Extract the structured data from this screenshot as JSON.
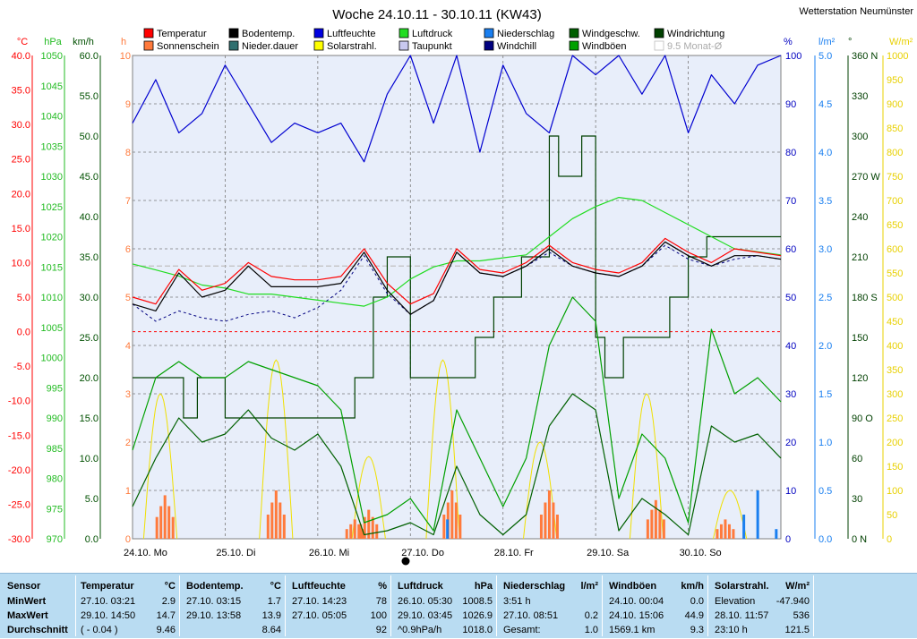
{
  "title": "Woche 24.10.11 - 30.10.11 (KW43)",
  "station": "Wetterstation Neumünster",
  "legend": [
    {
      "label": "Temperatur",
      "color": "#ff0000"
    },
    {
      "label": "Sonnenschein",
      "color": "#ff7a3c"
    },
    {
      "label": "Bodentemp.",
      "color": "#000000"
    },
    {
      "label": "Nieder.dauer",
      "color": "#2f6f6f"
    },
    {
      "label": "Luftfeuchte",
      "color": "#0000e0"
    },
    {
      "label": "Solarstrahl.",
      "color": "#ffff00"
    },
    {
      "label": "Luftdruck",
      "color": "#22dd22"
    },
    {
      "label": "Taupunkt",
      "color": "#c8c8f0"
    },
    {
      "label": "Niederschlag",
      "color": "#1a7ff0"
    },
    {
      "label": "Windchill",
      "color": "#000080"
    },
    {
      "label": "Windgeschw.",
      "color": "#006000"
    },
    {
      "label": "Windböen",
      "color": "#00a000"
    },
    {
      "label": "Windrichtung",
      "color": "#004000"
    },
    {
      "label": "9.5 Monat-Ø",
      "color": "#c0c0c0"
    }
  ],
  "axes": {
    "temp": {
      "unit": "°C",
      "color": "#ff0000",
      "ticks": [
        "40.0",
        "35.0",
        "30.0",
        "25.0",
        "20.0",
        "15.0",
        "10.0",
        "5.0",
        "0.0",
        "-5.0",
        "-10.0",
        "-15.0",
        "-20.0",
        "-25.0",
        "-30.0"
      ]
    },
    "press": {
      "unit": "hPa",
      "color": "#22bb22",
      "ticks": [
        "1050",
        "1045",
        "1040",
        "1035",
        "1030",
        "1025",
        "1020",
        "1015",
        "1010",
        "1005",
        "1000",
        "995",
        "990",
        "985",
        "980",
        "975",
        "970"
      ]
    },
    "wind": {
      "unit": "km/h",
      "color": "#005000",
      "ticks": [
        "60.0",
        "55.0",
        "50.0",
        "45.0",
        "40.0",
        "35.0",
        "30.0",
        "25.0",
        "20.0",
        "15.0",
        "10.0",
        "5.0",
        "0.0"
      ]
    },
    "hours": {
      "unit": "h",
      "color": "#ff7a3c",
      "ticks": [
        "10",
        "9",
        "8",
        "7",
        "6",
        "5",
        "4",
        "3",
        "2",
        "1",
        "0"
      ]
    },
    "hum": {
      "unit": "%",
      "color": "#0000c0",
      "ticks": [
        "100",
        "90",
        "80",
        "70",
        "60",
        "50",
        "40",
        "30",
        "20",
        "10",
        "0"
      ]
    },
    "rain": {
      "unit": "l/m²",
      "color": "#1a7ff0",
      "ticks": [
        "5.0",
        "4.5",
        "4.0",
        "3.5",
        "3.0",
        "2.5",
        "2.0",
        "1.5",
        "1.0",
        "0.5",
        "0.0"
      ]
    },
    "dir": {
      "unit": "°",
      "color": "#004000",
      "ticks": [
        "360 N",
        "330",
        "300",
        "270 W",
        "240",
        "210",
        "180 S",
        "150",
        "120",
        "90 O",
        "60",
        "30",
        "0 N"
      ]
    },
    "solar": {
      "unit": "W/m²",
      "color": "#e8d000",
      "ticks": [
        "1000",
        "950",
        "900",
        "850",
        "800",
        "750",
        "700",
        "650",
        "600",
        "550",
        "500",
        "450",
        "400",
        "350",
        "300",
        "250",
        "200",
        "150",
        "100",
        "50",
        "0"
      ]
    }
  },
  "x_labels": [
    "24.10. Mo",
    "25.10. Di",
    "26.10. Mi",
    "27.10. Do",
    "28.10. Fr",
    "29.10. Sa",
    "30.10. So"
  ],
  "chart_data": {
    "type": "line",
    "title": "Woche 24.10.11 - 30.10.11 (KW43)",
    "x": [
      0,
      0.25,
      0.5,
      0.75,
      1,
      1.25,
      1.5,
      1.75,
      2,
      2.25,
      2.5,
      2.75,
      3,
      3.25,
      3.5,
      3.75,
      4,
      4.25,
      4.5,
      4.75,
      5,
      5.25,
      5.5,
      5.75,
      6,
      6.25,
      6.5,
      6.75,
      7
    ],
    "x_unit": "days since 24.10. 00:00",
    "series": [
      {
        "name": "Temperatur",
        "unit": "°C",
        "values": [
          5.0,
          4.0,
          9.0,
          6.0,
          7.0,
          10.0,
          8.0,
          7.5,
          7.5,
          8.0,
          12.0,
          7.0,
          4.0,
          5.5,
          12.0,
          9.0,
          8.5,
          10.0,
          12.5,
          10.0,
          9.0,
          8.5,
          10.0,
          13.5,
          11.5,
          10.0,
          12.0,
          11.5,
          11.0
        ]
      },
      {
        "name": "Bodentemp.",
        "unit": "°C",
        "values": [
          4.0,
          3.0,
          8.5,
          5.0,
          6.0,
          9.5,
          6.5,
          6.5,
          6.5,
          7.0,
          11.5,
          6.0,
          2.5,
          4.5,
          11.5,
          8.5,
          8.0,
          9.5,
          12.0,
          9.5,
          8.5,
          8.0,
          9.5,
          13.0,
          11.0,
          9.5,
          11.0,
          11.0,
          10.5
        ]
      },
      {
        "name": "Windchill",
        "unit": "°C",
        "values": [
          4.0,
          1.5,
          3.0,
          2.0,
          1.5,
          2.5,
          3.0,
          2.0,
          3.5,
          6.0,
          11.0,
          5.5,
          2.5,
          4.5,
          11.5,
          8.5,
          8.0,
          9.5,
          11.5,
          9.5,
          8.5,
          8.0,
          9.5,
          12.5,
          10.5,
          9.5,
          10.5,
          11.0,
          10.5
        ]
      },
      {
        "name": "Luftfeuchte",
        "unit": "%",
        "values": [
          86,
          95,
          84,
          88,
          98,
          90,
          82,
          86,
          84,
          86,
          78,
          92,
          100,
          86,
          100,
          80,
          98,
          88,
          84,
          100,
          96,
          100,
          92,
          100,
          84,
          96,
          90,
          98,
          100
        ]
      },
      {
        "name": "Luftdruck",
        "unit": "hPa",
        "values": [
          1015.5,
          1014.5,
          1013.5,
          1012.0,
          1011.5,
          1010.5,
          1010.5,
          1010.0,
          1009.5,
          1009.0,
          1008.5,
          1010.0,
          1013.0,
          1015.0,
          1016.0,
          1016.0,
          1016.5,
          1017.0,
          1020.0,
          1023.0,
          1025.0,
          1026.5,
          1026.0,
          1024.0,
          1022.0,
          1020.0,
          1018.0,
          1017.5,
          1017.0
        ]
      },
      {
        "name": "Windgeschw.",
        "unit": "km/h",
        "values": [
          4.0,
          10.0,
          15.0,
          12.0,
          13.0,
          16.0,
          12.5,
          11.0,
          13.0,
          9.0,
          0.5,
          1.0,
          2.0,
          0.5,
          9.0,
          3.0,
          0.5,
          3.0,
          14.0,
          18.0,
          16.0,
          1.0,
          5.0,
          3.0,
          0.5,
          14.0,
          12.0,
          13.0,
          10.0
        ]
      },
      {
        "name": "Windböen",
        "unit": "km/h",
        "values": [
          11.0,
          20.0,
          22.0,
          20.0,
          20.0,
          22.0,
          21.0,
          20.0,
          19.0,
          16.0,
          2.0,
          3.0,
          5.0,
          1.0,
          16.0,
          10.0,
          4.0,
          10.0,
          24.0,
          30.0,
          27.0,
          5.0,
          13.0,
          10.0,
          2.0,
          26.0,
          18.0,
          20.0,
          17.0
        ]
      }
    ],
    "right_series": [
      {
        "name": "Windrichtung",
        "unit": "°",
        "x": [
          0,
          0.3,
          0.55,
          0.7,
          1.0,
          1.5,
          2.0,
          2.15,
          2.4,
          2.6,
          2.75,
          3.0,
          3.5,
          3.7,
          3.9,
          4.2,
          4.5,
          4.6,
          4.85,
          5.0,
          5.1,
          5.3,
          5.5,
          5.8,
          6.0,
          6.2,
          6.5,
          7
        ],
        "values": [
          120,
          120,
          90,
          120,
          90,
          90,
          90,
          90,
          120,
          180,
          210,
          120,
          120,
          150,
          180,
          210,
          300,
          270,
          300,
          150,
          120,
          150,
          150,
          180,
          210,
          225,
          225,
          225
        ]
      },
      {
        "name": "Solarstrahl.",
        "unit": "W/m²",
        "peaks": [
          {
            "x": 0.3,
            "y": 300
          },
          {
            "x": 1.55,
            "y": 370
          },
          {
            "x": 2.55,
            "y": 170
          },
          {
            "x": 3.35,
            "y": 370
          },
          {
            "x": 4.4,
            "y": 200
          },
          {
            "x": 5.55,
            "y": 300
          },
          {
            "x": 6.45,
            "y": 100
          }
        ]
      },
      {
        "name": "Sonnenschein",
        "unit": "h",
        "bars": [
          {
            "x": 0.35,
            "y": 0.9
          },
          {
            "x": 1.55,
            "y": 1.0
          },
          {
            "x": 2.4,
            "y": 0.4
          },
          {
            "x": 2.55,
            "y": 0.6
          },
          {
            "x": 3.45,
            "y": 1.0
          },
          {
            "x": 4.5,
            "y": 1.0
          },
          {
            "x": 5.65,
            "y": 0.8
          },
          {
            "x": 6.4,
            "y": 0.4
          }
        ]
      },
      {
        "name": "Niederschlag",
        "unit": "l/m²",
        "bars": [
          {
            "x": 3.4,
            "y": 0.2
          },
          {
            "x": 6.6,
            "y": 0.25
          },
          {
            "x": 6.75,
            "y": 0.5
          },
          {
            "x": 6.95,
            "y": 0.1
          }
        ]
      }
    ],
    "reference_lines": [
      {
        "name": "0 °C",
        "y": 0,
        "color": "#ff0000"
      },
      {
        "name": "9.5 Monat-Ø",
        "y": 9.5,
        "color": "#c0c0c0"
      }
    ],
    "xlim": [
      0,
      7
    ],
    "ylim": [
      -30,
      40
    ],
    "grid": true,
    "legend_position": "top"
  },
  "stats": {
    "labels": {
      "sensor": "Sensor",
      "min": "MinWert",
      "max": "MaxWert",
      "avg": "Durchschnitt"
    },
    "blocks": [
      {
        "name": "Temperatur",
        "unit": "°C",
        "rows": [
          [
            "27.10.  03:21",
            "2.9"
          ],
          [
            "29.10.  14:50",
            "14.7"
          ],
          [
            "( - 0.04 )",
            "9.46"
          ]
        ]
      },
      {
        "name": "Bodentemp.",
        "unit": "°C",
        "rows": [
          [
            "27.10.  03:15",
            "1.7"
          ],
          [
            "29.10.  13:58",
            "13.9"
          ],
          [
            "",
            "8.64"
          ]
        ]
      },
      {
        "name": "Luftfeuchte",
        "unit": "%",
        "rows": [
          [
            "27.10.  14:23",
            "78"
          ],
          [
            "27.10.  05:05",
            "100"
          ],
          [
            "",
            "92"
          ]
        ]
      },
      {
        "name": "Luftdruck",
        "unit": "hPa",
        "rows": [
          [
            "26.10.  05:30",
            "1008.5"
          ],
          [
            "29.10.  03:45",
            "1026.9"
          ],
          [
            "^0.9hPa/h",
            "1018.0"
          ]
        ]
      },
      {
        "name": "Niederschlag",
        "unit": "l/m²",
        "rows": [
          [
            "3:51 h",
            ""
          ],
          [
            "27.10.  08:51",
            "0.2"
          ],
          [
            "Gesamt:",
            "1.0"
          ]
        ]
      },
      {
        "name": "Windböen",
        "unit": "km/h",
        "rows": [
          [
            "24.10.  00:04",
            "0.0"
          ],
          [
            "24.10.  15:06",
            "44.9"
          ],
          [
            "1569.1 km",
            "9.3"
          ]
        ]
      },
      {
        "name": "Solarstrahl.",
        "unit": "W/m²",
        "rows": [
          [
            "Elevation",
            "-47.940"
          ],
          [
            "28.10.  11:57",
            "536"
          ],
          [
            "23:10 h",
            "121.5"
          ]
        ]
      }
    ]
  }
}
